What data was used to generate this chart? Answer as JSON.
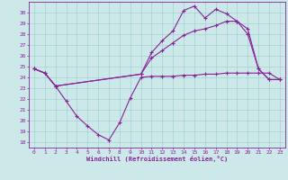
{
  "bg_color": "#cce8e8",
  "line_color": "#882299",
  "grid_color": "#99cccc",
  "xlabel": "Windchill (Refroidissement éolien,°C)",
  "xlim": [
    -0.5,
    23.5
  ],
  "ylim": [
    17.5,
    31.0
  ],
  "yticks": [
    18,
    19,
    20,
    21,
    22,
    23,
    24,
    25,
    26,
    27,
    28,
    29,
    30
  ],
  "xticks": [
    0,
    1,
    2,
    3,
    4,
    5,
    6,
    7,
    8,
    9,
    10,
    11,
    12,
    13,
    14,
    15,
    16,
    17,
    18,
    19,
    20,
    21,
    22,
    23
  ],
  "line1_x": [
    0,
    1,
    2,
    3,
    4,
    5,
    6,
    7,
    8,
    9,
    10,
    11,
    12,
    13,
    14,
    15,
    16,
    17,
    18,
    19,
    20,
    21,
    22,
    23
  ],
  "line1_y": [
    24.8,
    24.4,
    23.2,
    21.8,
    20.4,
    19.5,
    18.7,
    18.2,
    19.8,
    22.1,
    24.0,
    24.1,
    24.1,
    24.1,
    24.2,
    24.2,
    24.3,
    24.3,
    24.4,
    24.4,
    24.4,
    24.4,
    24.4,
    23.8
  ],
  "line2_x": [
    0,
    1,
    2,
    10,
    11,
    12,
    13,
    14,
    15,
    16,
    17,
    18,
    19,
    20,
    21,
    22,
    23
  ],
  "line2_y": [
    24.8,
    24.4,
    23.2,
    24.3,
    25.8,
    26.5,
    27.2,
    27.9,
    28.3,
    28.5,
    28.8,
    29.2,
    29.2,
    28.0,
    24.8,
    23.8,
    23.8
  ],
  "line3_x": [
    0,
    1,
    2,
    10,
    11,
    12,
    13,
    14,
    15,
    16,
    17,
    18,
    19,
    20,
    21,
    22,
    23
  ],
  "line3_y": [
    24.8,
    24.4,
    23.2,
    24.3,
    26.3,
    27.4,
    28.3,
    30.2,
    30.6,
    29.5,
    30.3,
    29.9,
    29.2,
    28.5,
    24.8,
    23.8,
    23.8
  ]
}
